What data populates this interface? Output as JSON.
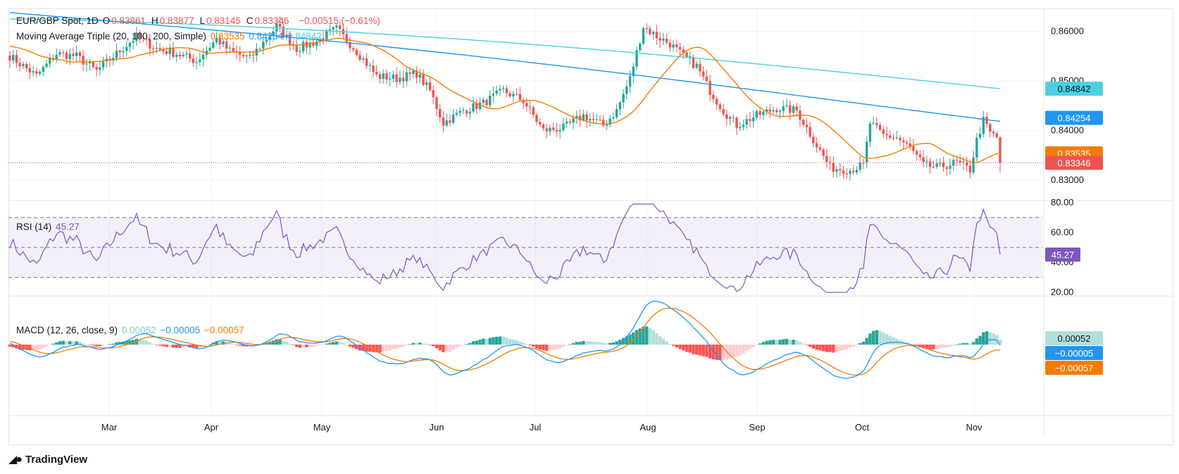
{
  "header": {
    "symbol": "EUR/GBP Spot, 1D",
    "ohlc": [
      {
        "label": "O",
        "value": "0.83861"
      },
      {
        "label": "H",
        "value": "0.83877"
      },
      {
        "label": "L",
        "value": "0.83145"
      },
      {
        "label": "C",
        "value": "0.83346"
      }
    ],
    "change": "−0.00515 (−0.61%)",
    "ma_label": "Moving Average Triple (20, 100, 200, Simple)",
    "ma_values": [
      "0.83535",
      "0.84254",
      "0.84842"
    ]
  },
  "rsi_legend": {
    "label": "RSI (14)",
    "value": "45.27"
  },
  "macd_legend": {
    "label": "MACD (12, 26, close, 9)",
    "values": [
      "0.00052",
      "−0.00005",
      "−0.00057"
    ]
  },
  "branding": "TradingView",
  "colors": {
    "up": "#26a69a",
    "down": "#ef5350",
    "ma20": "#f57c00",
    "ma100": "#2196f3",
    "ma200": "#4dd0e1",
    "rsi": "#7e57c2",
    "macd": "#2196f3",
    "signal": "#f57c00",
    "hist_up_strong": "#26a69a",
    "hist_up_weak": "#b2dfdb",
    "hist_down_strong": "#ff5252",
    "hist_down_weak": "#ffcdd2"
  },
  "chart_data": {
    "type": "candlestick",
    "x_labels": [
      "Mar",
      "Apr",
      "May",
      "Jun",
      "Jul",
      "Aug",
      "Sep",
      "Oct",
      "Nov"
    ],
    "price_axis": {
      "ticks": [
        "0.86000",
        "0.85000",
        "0.84000",
        "0.83000"
      ],
      "range": [
        0.826,
        0.8645
      ]
    },
    "price_badges": [
      {
        "value": "0.84842",
        "color": "#4dd0e1"
      },
      {
        "value": "0.84254",
        "color": "#2196f3"
      },
      {
        "value": "0.83535",
        "color": "#f57c00"
      },
      {
        "value": "0.83346",
        "color": "#ef5350"
      }
    ],
    "anchors": [
      [
        0,
        0.855
      ],
      [
        8,
        0.851
      ],
      [
        14,
        0.8555
      ],
      [
        20,
        0.855
      ],
      [
        26,
        0.852
      ],
      [
        32,
        0.8555
      ],
      [
        38,
        0.859
      ],
      [
        44,
        0.8565
      ],
      [
        50,
        0.8555
      ],
      [
        56,
        0.854
      ],
      [
        62,
        0.8585
      ],
      [
        66,
        0.856
      ],
      [
        72,
        0.8545
      ],
      [
        80,
        0.861
      ],
      [
        86,
        0.8565
      ],
      [
        92,
        0.858
      ],
      [
        98,
        0.8605
      ],
      [
        104,
        0.856
      ],
      [
        110,
        0.851
      ],
      [
        116,
        0.8505
      ],
      [
        122,
        0.8515
      ],
      [
        126,
        0.848
      ],
      [
        130,
        0.8415
      ],
      [
        136,
        0.844
      ],
      [
        142,
        0.8455
      ],
      [
        148,
        0.848
      ],
      [
        154,
        0.846
      ],
      [
        160,
        0.84
      ],
      [
        166,
        0.8405
      ],
      [
        172,
        0.843
      ],
      [
        178,
        0.841
      ],
      [
        182,
        0.844
      ],
      [
        186,
        0.8505
      ],
      [
        190,
        0.861
      ],
      [
        194,
        0.859
      ],
      [
        198,
        0.8575
      ],
      [
        202,
        0.855
      ],
      [
        206,
        0.853
      ],
      [
        210,
        0.848
      ],
      [
        214,
        0.844
      ],
      [
        218,
        0.841
      ],
      [
        224,
        0.843
      ],
      [
        230,
        0.8445
      ],
      [
        236,
        0.844
      ],
      [
        242,
        0.837
      ],
      [
        246,
        0.8325
      ],
      [
        252,
        0.832
      ],
      [
        256,
        0.833
      ],
      [
        258,
        0.8415
      ],
      [
        262,
        0.839
      ],
      [
        266,
        0.8385
      ],
      [
        270,
        0.8365
      ],
      [
        274,
        0.833
      ],
      [
        278,
        0.8325
      ],
      [
        284,
        0.8335
      ],
      [
        288,
        0.832
      ],
      [
        290,
        0.838
      ],
      [
        292,
        0.842
      ],
      [
        294,
        0.8395
      ],
      [
        296,
        0.8386
      ],
      [
        297,
        0.83346
      ]
    ],
    "last_candle": {
      "open": 0.83861,
      "high": 0.83877,
      "low": 0.83145,
      "close": 0.83346
    },
    "moving_averages": {
      "periods": [
        20,
        100,
        200
      ],
      "last": [
        0.83535,
        0.84254,
        0.84842
      ]
    },
    "rsi": {
      "period": 14,
      "last": 45.27,
      "axis_ticks": [
        "80.00",
        "60.00",
        "40.00",
        "20.00"
      ],
      "bands": [
        30,
        50,
        70
      ],
      "range": [
        18,
        80
      ]
    },
    "macd": {
      "fast": 12,
      "slow": 26,
      "signal": 9,
      "last": {
        "histogram": 0.00052,
        "macd": -5e-05,
        "signal": -0.00057
      },
      "badges": [
        {
          "value": "0.00052",
          "color": "#b2dfdb",
          "text": "#131722"
        },
        {
          "value": "−0.00005",
          "color": "#2196f3",
          "text": "#ffffff"
        },
        {
          "value": "−0.00057",
          "color": "#f57c00",
          "text": "#ffffff"
        }
      ]
    }
  }
}
